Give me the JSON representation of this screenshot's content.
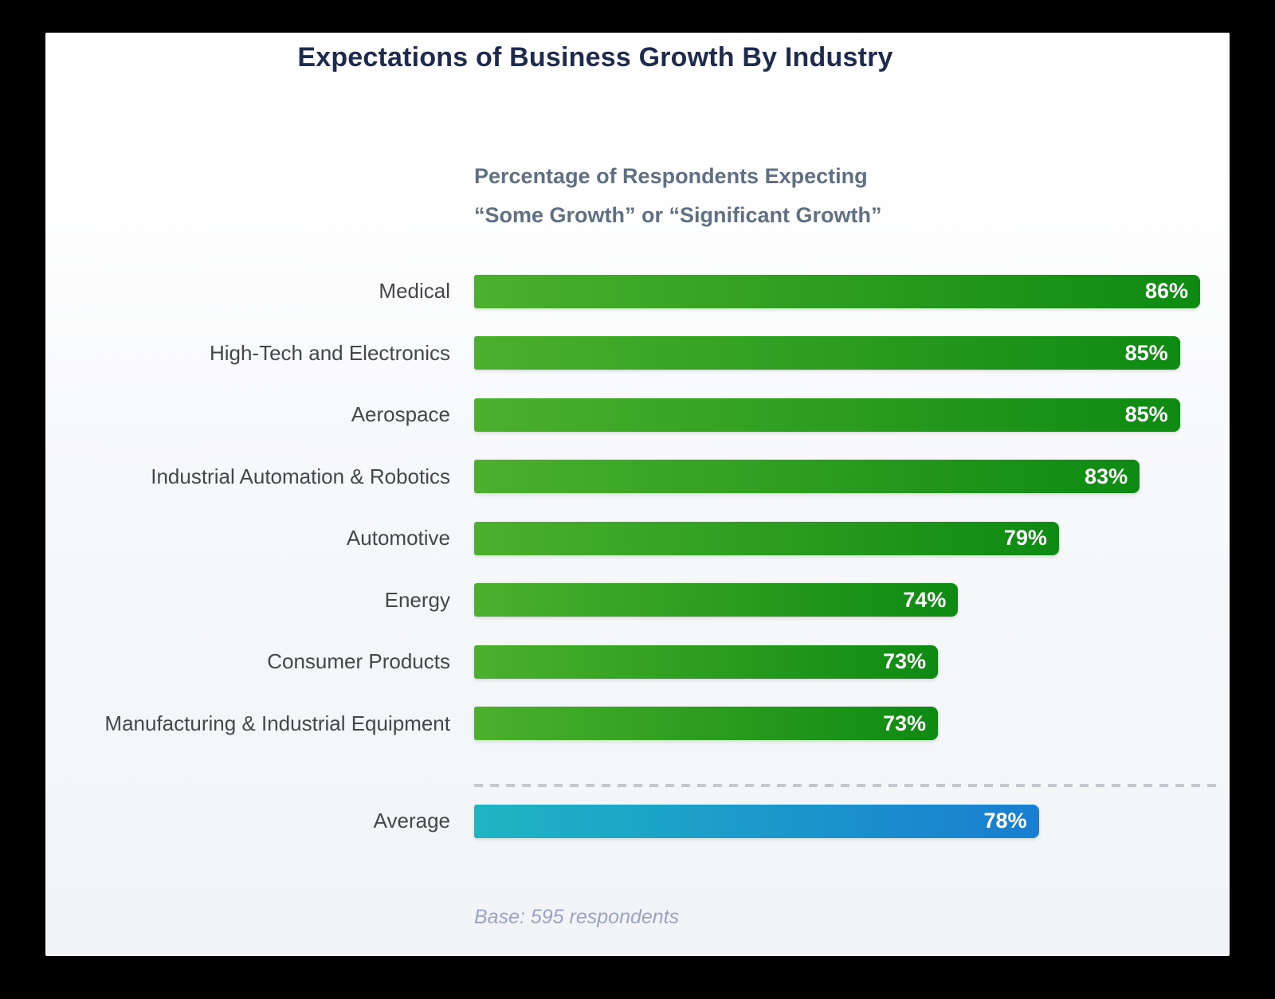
{
  "page": {
    "background_color": "#000000",
    "card_background_top": "#ffffff",
    "card_background_bottom": "#f2f4f7"
  },
  "chart_data": {
    "type": "bar",
    "orientation": "horizontal",
    "title": "Expectations of Business Growth By Industry",
    "title_color": "#1f2b4e",
    "subtitle_lines": [
      "Percentage of Respondents Expecting",
      "“Some Growth” or “Significant Growth”"
    ],
    "subtitle_color": "#5f7084",
    "categories": [
      "Medical",
      "High-Tech and Electronics",
      "Aerospace",
      "Industrial Automation & Robotics",
      "Automotive",
      "Energy",
      "Consumer Products",
      "Manufacturing & Industrial Equipment"
    ],
    "values": [
      86,
      85,
      85,
      83,
      79,
      74,
      73,
      73
    ],
    "average_label": "Average",
    "average_value": 78,
    "value_suffix": "%",
    "xlim": [
      50,
      86
    ],
    "grid": false,
    "legend": false,
    "bar_gradient": [
      "#4bb02d",
      "#0e8a12"
    ],
    "average_gradient": [
      "#1eb5c3",
      "#197ed1"
    ],
    "category_label_color": "#43474b",
    "value_label_color": "#ffffff",
    "divider_style": "dashed",
    "divider_color": "#c3c7ce",
    "note": "Base: 595 respondents",
    "note_color": "#99a3c2"
  }
}
